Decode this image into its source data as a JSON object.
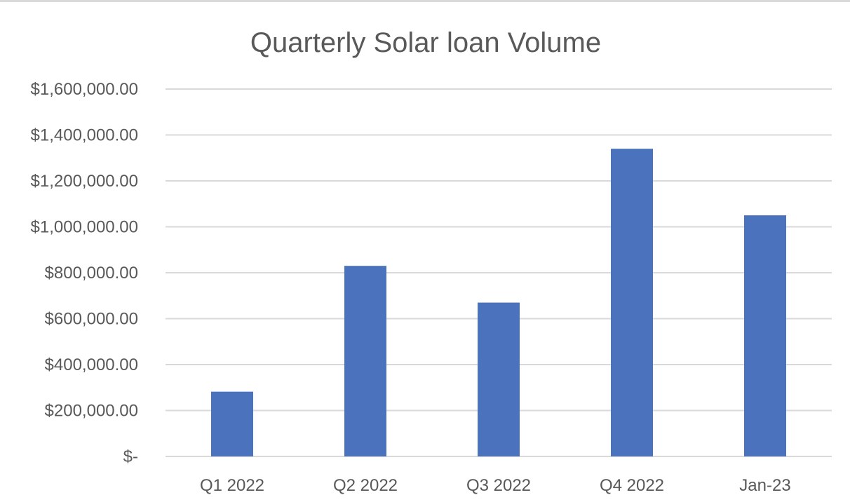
{
  "chart_data": {
    "type": "bar",
    "title": "Quarterly Solar loan Volume",
    "xlabel": "",
    "ylabel": "",
    "categories": [
      "Q1 2022",
      "Q2 2022",
      "Q3 2022",
      "Q4 2022",
      "Jan-23"
    ],
    "values": [
      282000,
      830000,
      670000,
      1340000,
      1050000
    ],
    "ylim": [
      0,
      1600000
    ],
    "yticks": [
      0,
      200000,
      400000,
      600000,
      800000,
      1000000,
      1200000,
      1400000,
      1600000
    ],
    "ytick_labels": [
      "$-",
      "$200,000.00",
      "$400,000.00",
      "$600,000.00",
      "$800,000.00",
      "$1,000,000.00",
      "$1,200,000.00",
      "$1,400,000.00",
      "$1,600,000.00"
    ],
    "grid": true,
    "legend": "none",
    "bar_color": "#4a72bd"
  }
}
